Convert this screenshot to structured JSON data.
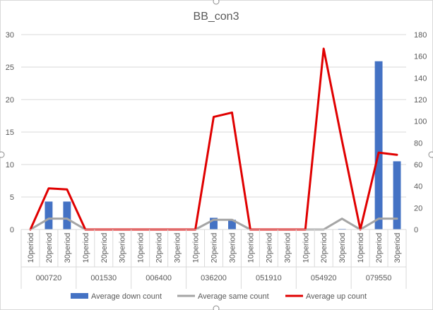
{
  "chart_data": {
    "type": "bar",
    "title": "BB_con3",
    "subcategories": [
      "10period",
      "20period",
      "30period"
    ],
    "groups": [
      "000720",
      "001530",
      "006400",
      "036200",
      "051910",
      "054920",
      "079550"
    ],
    "left_axis": {
      "ylim": [
        0,
        30
      ],
      "ticks": [
        "0",
        "5",
        "10",
        "15",
        "20",
        "25",
        "30"
      ]
    },
    "right_axis": {
      "ylim": [
        0,
        180
      ],
      "ticks": [
        "0",
        "20",
        "40",
        "60",
        "80",
        "100",
        "120",
        "140",
        "160",
        "180"
      ]
    },
    "grid": true,
    "legend_position": "bottom",
    "series": [
      {
        "name": "Average down count",
        "kind": "bar",
        "axis": "left",
        "color": "#4472c4",
        "values": [
          0,
          4.3,
          4.3,
          0,
          0,
          0,
          0,
          0,
          0,
          0,
          1.8,
          1.5,
          0,
          0,
          0,
          0,
          0,
          0.1,
          0,
          25.9,
          10.5
        ]
      },
      {
        "name": "Average same count",
        "kind": "line",
        "axis": "right",
        "color": "#a5a5a5",
        "values": [
          0,
          10,
          10,
          0,
          0,
          0,
          0,
          0,
          0,
          0,
          9,
          9,
          0,
          0,
          0,
          0,
          0,
          10,
          0,
          10,
          10
        ]
      },
      {
        "name": "Average up count",
        "kind": "line",
        "axis": "right",
        "color": "#e00000",
        "values": [
          0,
          38,
          37,
          0,
          0,
          0,
          0,
          0,
          0,
          0,
          104,
          108,
          0,
          0,
          0,
          0,
          167,
          82,
          0,
          71,
          69
        ]
      }
    ]
  }
}
